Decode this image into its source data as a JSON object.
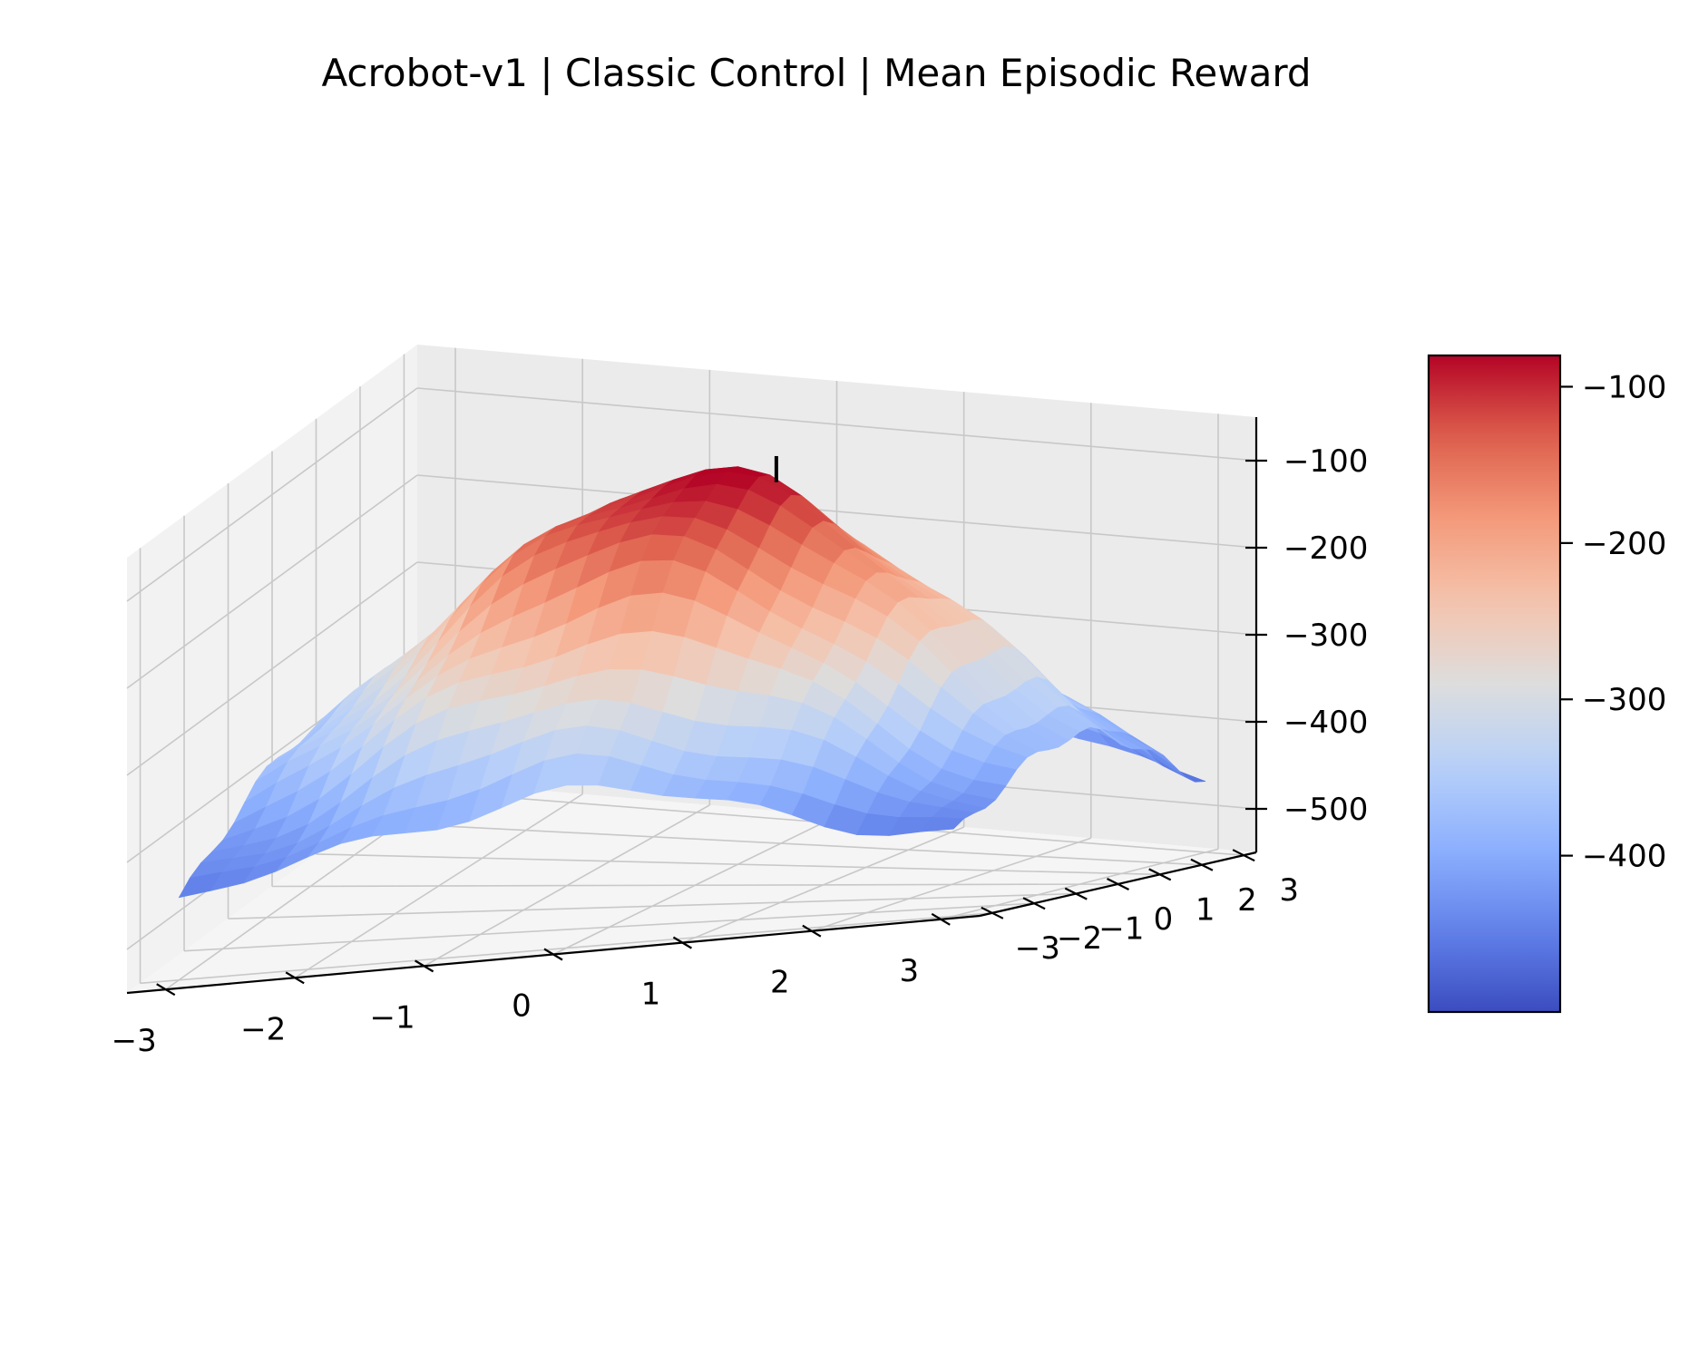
{
  "chart_data": {
    "type": "surface3d",
    "title": "Acrobot-v1 | Classic Control | Mean Episodic Reward",
    "xlabel": "",
    "ylabel": "",
    "zlabel": "",
    "xlim": [
      -3.3,
      3.3
    ],
    "ylim": [
      -3.3,
      3.3
    ],
    "zlim": [
      -550,
      -50
    ],
    "x_ticks": [
      -3,
      -2,
      -1,
      0,
      1,
      2,
      3
    ],
    "y_ticks": [
      -3,
      -2,
      -1,
      0,
      1,
      2,
      3
    ],
    "z_ticks": [
      -500,
      -400,
      -300,
      -200,
      -100
    ],
    "x_tick_labels": [
      "−3",
      "−2",
      "−1",
      "0",
      "1",
      "2",
      "3"
    ],
    "y_tick_labels": [
      "−3",
      "−2",
      "−1",
      "0",
      "1",
      "2",
      "3"
    ],
    "z_tick_labels": [
      "−500",
      "−400",
      "−300",
      "−200",
      "−100"
    ],
    "grid": true,
    "colormap": "coolwarm",
    "colorbar": {
      "range": [
        -500,
        -80
      ],
      "ticks": [
        -400,
        -300,
        -200,
        -100
      ],
      "tick_labels": [
        "−400",
        "−300",
        "−200",
        "−100"
      ]
    },
    "surface": {
      "grid_size": 25,
      "x_range": [
        -3,
        3
      ],
      "y_range": [
        -3,
        3
      ],
      "peak": [
        0,
        0,
        -80
      ],
      "floor": -500
    },
    "marker": {
      "x": 0.3,
      "y": 1.0,
      "z_top": -80,
      "z_bottom": -110
    }
  }
}
